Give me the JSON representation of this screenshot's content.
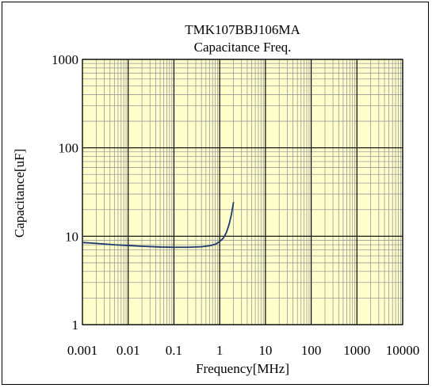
{
  "colors": {
    "plot_background": "#ffffcc",
    "curve": "#1f3b6e",
    "major_grid": "#000000",
    "minor_grid": "#9a9a9a"
  },
  "chart_data": {
    "type": "line",
    "title": "TMK107BBJ106MA",
    "subtitle": "Capacitance Freq.",
    "xlabel": "Frequency[MHz]",
    "ylabel": "Capacitance[uF]",
    "xscale": "log",
    "yscale": "log",
    "xlim": [
      0.001,
      10000
    ],
    "ylim": [
      1,
      1000
    ],
    "grid": true,
    "legend": "none",
    "x_tick_labels": [
      "0.001",
      "0.01",
      "0.1",
      "1",
      "10",
      "100",
      "1000",
      "10000"
    ],
    "y_tick_labels": [
      "1",
      "10",
      "100",
      "1000"
    ],
    "series": [
      {
        "x": [
          0.001,
          0.002,
          0.005,
          0.01,
          0.02,
          0.05,
          0.1,
          0.2,
          0.4,
          0.6,
          0.8,
          1.0,
          1.2,
          1.4,
          1.6,
          1.8,
          2.0
        ],
        "y": [
          8.5,
          8.3,
          8.0,
          7.85,
          7.7,
          7.55,
          7.5,
          7.5,
          7.6,
          7.8,
          8.1,
          8.7,
          9.5,
          11.0,
          13.5,
          17.5,
          24.0
        ]
      }
    ]
  }
}
